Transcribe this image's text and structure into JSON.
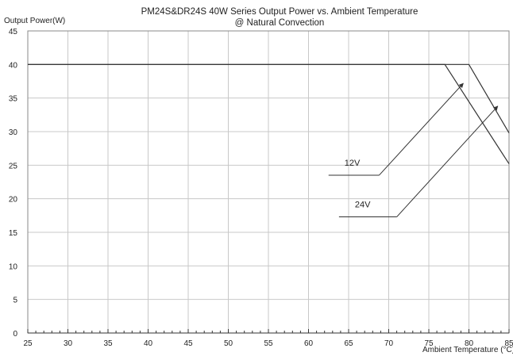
{
  "chart_data": {
    "type": "line",
    "title": [
      "PM24S&DR24S  40W Series  Output Power vs. Ambient Temperature",
      "@ Natural Convection"
    ],
    "xlabel": "Ambient Temperature (°C)",
    "ylabel": "Output Power(W)",
    "xlim": [
      25,
      85
    ],
    "ylim": [
      0,
      45
    ],
    "xticks": [
      "25",
      "30",
      "35",
      "40",
      "45",
      "50",
      "55",
      "60",
      "65",
      "70",
      "75",
      "80",
      "85"
    ],
    "yticks": [
      "0",
      "5",
      "10",
      "15",
      "20",
      "25",
      "30",
      "35",
      "40",
      "45"
    ],
    "grid": true,
    "series": [
      {
        "name": "12V",
        "x": [
          25,
          77,
          85
        ],
        "y": [
          40,
          40,
          25.2
        ],
        "color": "#333333"
      },
      {
        "name": "24V",
        "x": [
          25,
          80,
          85
        ],
        "y": [
          40,
          40,
          29.8
        ],
        "color": "#333333"
      }
    ],
    "annotations": [
      {
        "text": "12V",
        "label_at": [
          30.5,
          25.5
        ],
        "line": [
          [
            62.5,
            23.5
          ],
          [
            68.8,
            23.5
          ]
        ],
        "arrow": [
          [
            68.8,
            23.5
          ],
          [
            79.3,
            37.2
          ]
        ]
      },
      {
        "text": "24V",
        "label_at": [
          31.8,
          18.6
        ],
        "line": [
          [
            63.8,
            17.3
          ],
          [
            71,
            17.3
          ]
        ],
        "arrow": [
          [
            71,
            17.3
          ],
          [
            83.6,
            33.8
          ]
        ]
      }
    ]
  }
}
